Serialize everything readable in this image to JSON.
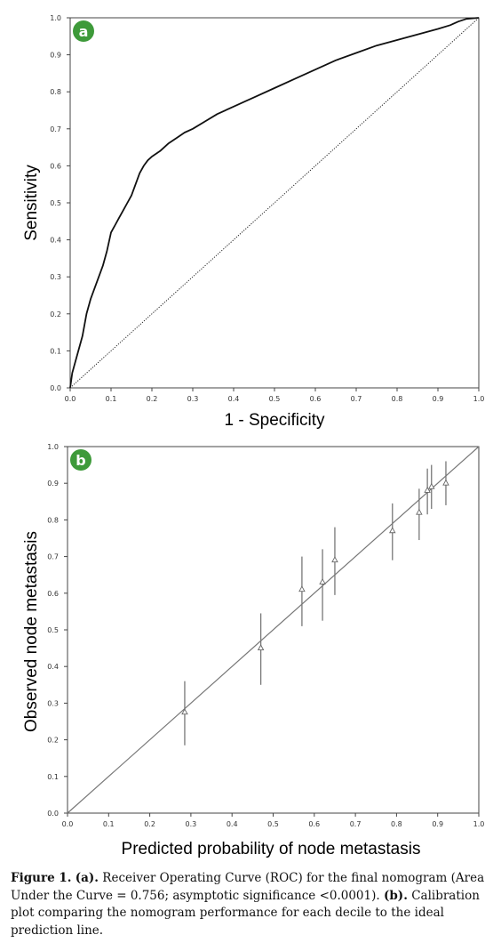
{
  "chart_data": [
    {
      "type": "line",
      "panel": "a",
      "xlabel": "1 - Specificity",
      "ylabel": "Sensitivity",
      "xlim": [
        0,
        1
      ],
      "ylim": [
        0,
        1
      ],
      "x_ticks": [
        "0.0",
        "0.1",
        "0.2",
        "0.3",
        "0.4",
        "0.5",
        "0.6",
        "0.7",
        "0.8",
        "0.9",
        "1.0"
      ],
      "y_ticks": [
        "0.0",
        "0.1",
        "0.2",
        "0.3",
        "0.4",
        "0.5",
        "0.6",
        "0.7",
        "0.8",
        "0.9",
        "1.0"
      ],
      "grid": false,
      "series": [
        {
          "style": "solid",
          "x": [
            0,
            0.005,
            0.01,
            0.02,
            0.03,
            0.04,
            0.05,
            0.06,
            0.07,
            0.08,
            0.09,
            0.1,
            0.11,
            0.12,
            0.13,
            0.14,
            0.15,
            0.16,
            0.17,
            0.18,
            0.19,
            0.2,
            0.22,
            0.24,
            0.26,
            0.28,
            0.3,
            0.33,
            0.36,
            0.4,
            0.43,
            0.45,
            0.5,
            0.55,
            0.6,
            0.65,
            0.7,
            0.75,
            0.8,
            0.85,
            0.9,
            0.93,
            0.95,
            0.97,
            1.0
          ],
          "y": [
            0,
            0.04,
            0.06,
            0.1,
            0.14,
            0.2,
            0.24,
            0.27,
            0.3,
            0.33,
            0.37,
            0.42,
            0.44,
            0.46,
            0.48,
            0.5,
            0.52,
            0.55,
            0.58,
            0.6,
            0.615,
            0.625,
            0.64,
            0.66,
            0.675,
            0.69,
            0.7,
            0.72,
            0.74,
            0.76,
            0.775,
            0.785,
            0.81,
            0.835,
            0.86,
            0.885,
            0.905,
            0.925,
            0.94,
            0.955,
            0.97,
            0.98,
            0.99,
            0.997,
            1.0
          ]
        },
        {
          "style": "dotted",
          "x": [
            0,
            1
          ],
          "y": [
            0,
            1
          ]
        }
      ]
    },
    {
      "type": "scatter",
      "panel": "b",
      "xlabel": "Predicted probability of node metastasis",
      "ylabel": "Observed node metastasis",
      "xlim": [
        0,
        1
      ],
      "ylim": [
        0,
        1
      ],
      "x_ticks": [
        "0.0",
        "0.1",
        "0.2",
        "0.3",
        "0.4",
        "0.5",
        "0.6",
        "0.7",
        "0.8",
        "0.9",
        "1.0"
      ],
      "y_ticks": [
        "0.0",
        "0.1",
        "0.2",
        "0.3",
        "0.4",
        "0.5",
        "0.6",
        "0.7",
        "0.8",
        "0.9",
        "1.0"
      ],
      "grid": false,
      "reference_line": {
        "x": [
          0,
          1
        ],
        "y": [
          0,
          1
        ]
      },
      "points": [
        {
          "x": 0.285,
          "y": 0.275,
          "lower": 0.185,
          "upper": 0.36
        },
        {
          "x": 0.47,
          "y": 0.45,
          "lower": 0.35,
          "upper": 0.545
        },
        {
          "x": 0.57,
          "y": 0.61,
          "lower": 0.51,
          "upper": 0.7
        },
        {
          "x": 0.62,
          "y": 0.63,
          "lower": 0.525,
          "upper": 0.72
        },
        {
          "x": 0.65,
          "y": 0.69,
          "lower": 0.595,
          "upper": 0.78
        },
        {
          "x": 0.79,
          "y": 0.77,
          "lower": 0.69,
          "upper": 0.845
        },
        {
          "x": 0.855,
          "y": 0.82,
          "lower": 0.745,
          "upper": 0.885
        },
        {
          "x": 0.875,
          "y": 0.88,
          "lower": 0.815,
          "upper": 0.94
        },
        {
          "x": 0.885,
          "y": 0.89,
          "lower": 0.83,
          "upper": 0.95
        },
        {
          "x": 0.92,
          "y": 0.9,
          "lower": 0.84,
          "upper": 0.96
        }
      ]
    }
  ],
  "badge_color": "#3e9a3a",
  "caption": {
    "label": "Figure 1.",
    "part_a": "(a).",
    "text_a": "Receiver Operating Curve (ROC) for the final nomogram (Area Under the Curve = 0.756; asymptotic significance <0.0001).",
    "part_b": "(b).",
    "text_b": "Calibration plot comparing the nomogram performance for each decile to the ideal prediction line."
  }
}
